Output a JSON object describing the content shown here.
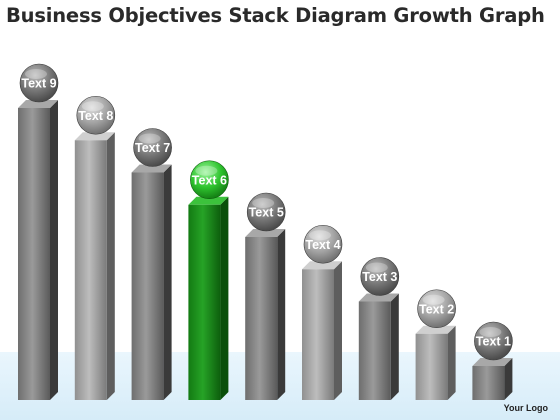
{
  "title": "Business Objectives Stack Diagram Growth Graph",
  "logo_text": "Your Logo",
  "colors": {
    "grey_dark": "#474747",
    "grey_light": "#8a8a8a",
    "highlight_dark": "#0f6a0f",
    "highlight_light": "#2fa52f",
    "floor": "#dff1fb"
  },
  "chart_data": {
    "type": "bar",
    "categories": [
      "Text 9",
      "Text 8",
      "Text 7",
      "Text 6",
      "Text 5",
      "Text 4",
      "Text 3",
      "Text 2",
      "Text 1"
    ],
    "values": [
      9,
      8,
      7,
      6,
      5,
      4,
      3,
      2,
      1
    ],
    "highlighted": "Text 6"
  }
}
